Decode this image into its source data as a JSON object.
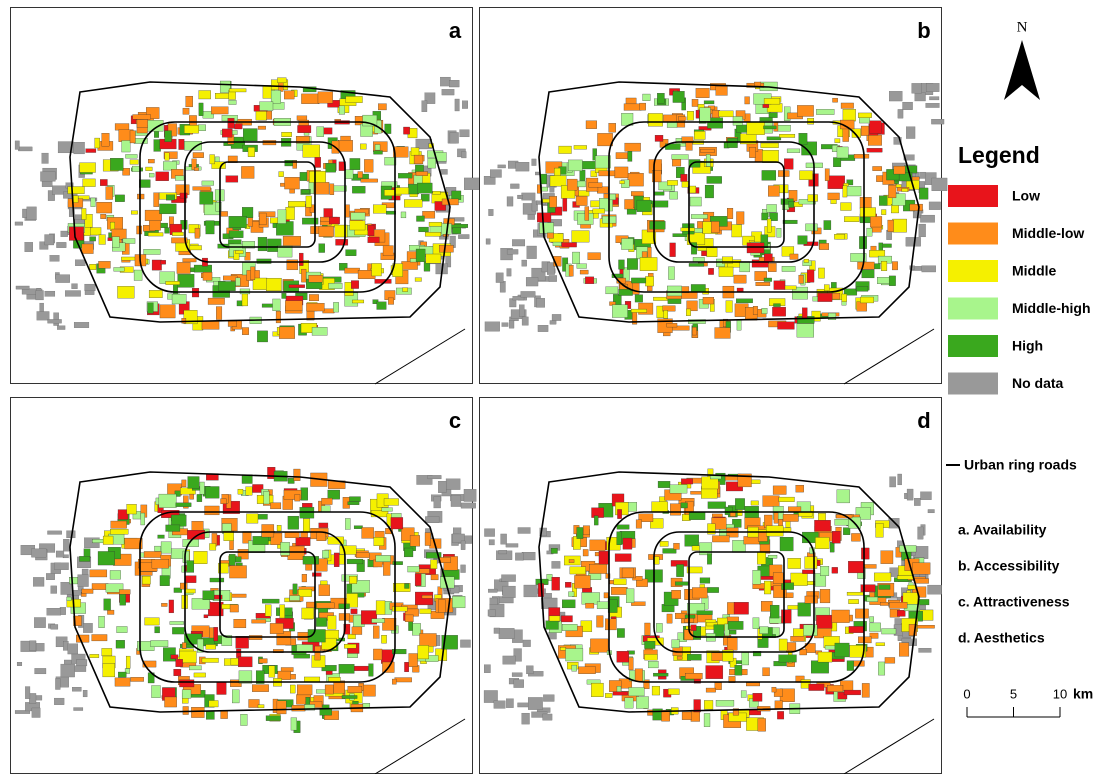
{
  "panels": [
    {
      "label": "a"
    },
    {
      "label": "b"
    },
    {
      "label": "c"
    },
    {
      "label": "d"
    }
  ],
  "north": "N",
  "legend": {
    "title": "Legend",
    "items": [
      {
        "label": "Low",
        "color": "#e8141b"
      },
      {
        "label": "Middle-low",
        "color": "#ff8c1a"
      },
      {
        "label": "Middle",
        "color": "#f5f000"
      },
      {
        "label": "Middle-high",
        "color": "#a8f58c"
      },
      {
        "label": "High",
        "color": "#3aa81e"
      },
      {
        "label": "No data",
        "color": "#999999"
      }
    ]
  },
  "ring_roads": "Urban ring roads",
  "descriptions": [
    "a. Availability",
    "b. Accessibility",
    "c. Attractiveness",
    "d. Aesthetics"
  ],
  "scale": {
    "ticks": [
      0,
      5,
      10
    ],
    "unit": "km"
  }
}
